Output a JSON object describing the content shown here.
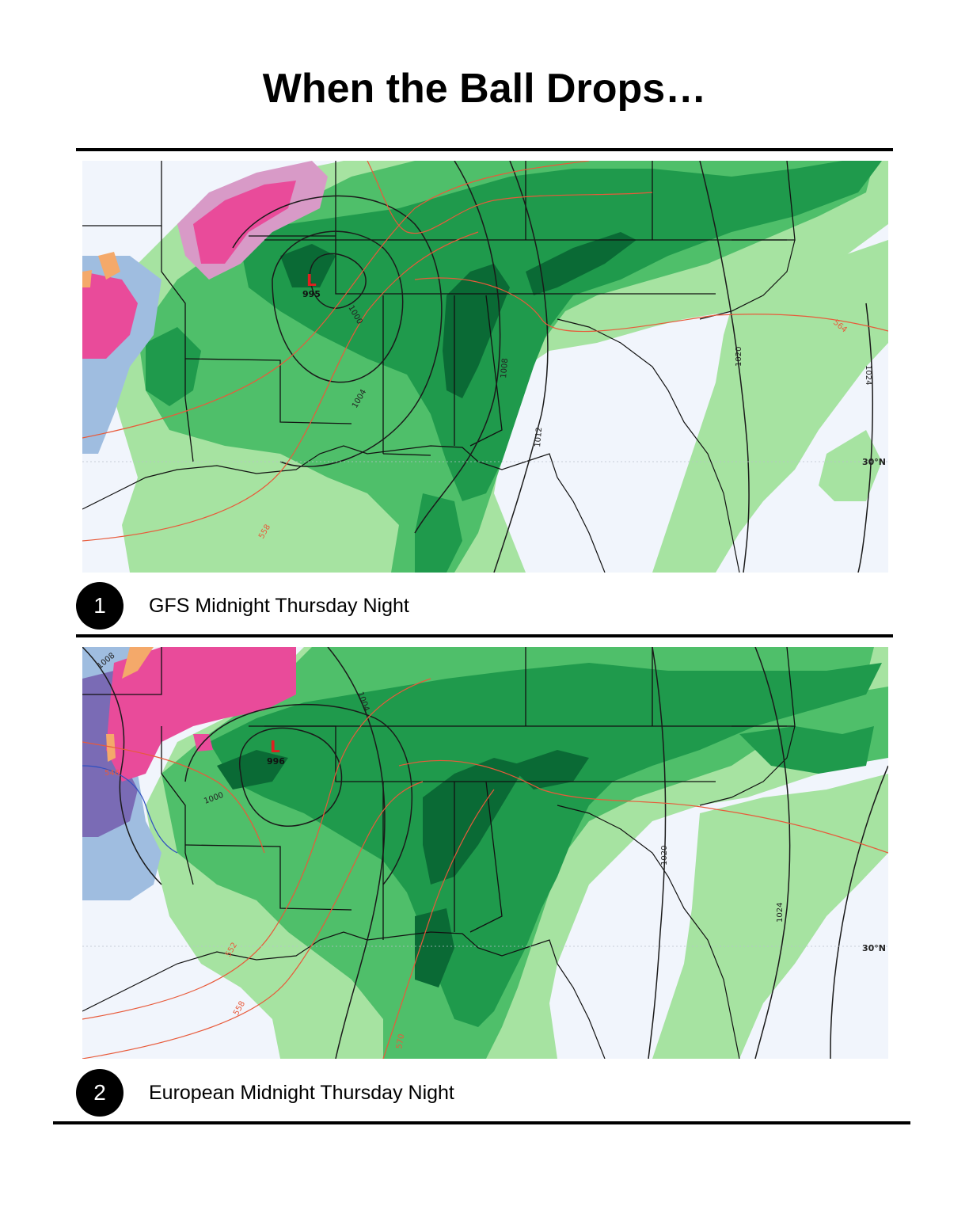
{
  "title": "When the Ball Drops…",
  "colors": {
    "background": "#f1f5fc",
    "rain_light": "#a6e3a1",
    "rain_mid": "#4fbf6a",
    "rain_heavy": "#1f9a4c",
    "rain_very_heavy": "#0a6a35",
    "snow_pink": "#e94b9a",
    "mix_light_pink": "#d89ac7",
    "ice_orange": "#f4a96a",
    "cold_blue": "#9fbde0",
    "cold_purple": "#7a6bb5",
    "isobar": "#1a1a1a",
    "thickness": "#e85a3a",
    "low_marker": "#e02020"
  },
  "panels": [
    {
      "number": "1",
      "caption": "GFS Midnight Thursday Night",
      "low": {
        "symbol": "L",
        "pressure": "995"
      },
      "isobar_labels": [
        "1000",
        "1004",
        "1008",
        "1012",
        "1020",
        "1024"
      ],
      "thickness_labels": [
        "558",
        "564"
      ],
      "latitude_label": "30°N"
    },
    {
      "number": "2",
      "caption": "European Midnight Thursday Night",
      "low": {
        "symbol": "L",
        "pressure": "996"
      },
      "isobar_labels": [
        "1008",
        "1000",
        "1004",
        "1020",
        "1024"
      ],
      "thickness_labels": [
        "546",
        "552",
        "558",
        "570"
      ],
      "latitude_label": "30°N"
    }
  ]
}
